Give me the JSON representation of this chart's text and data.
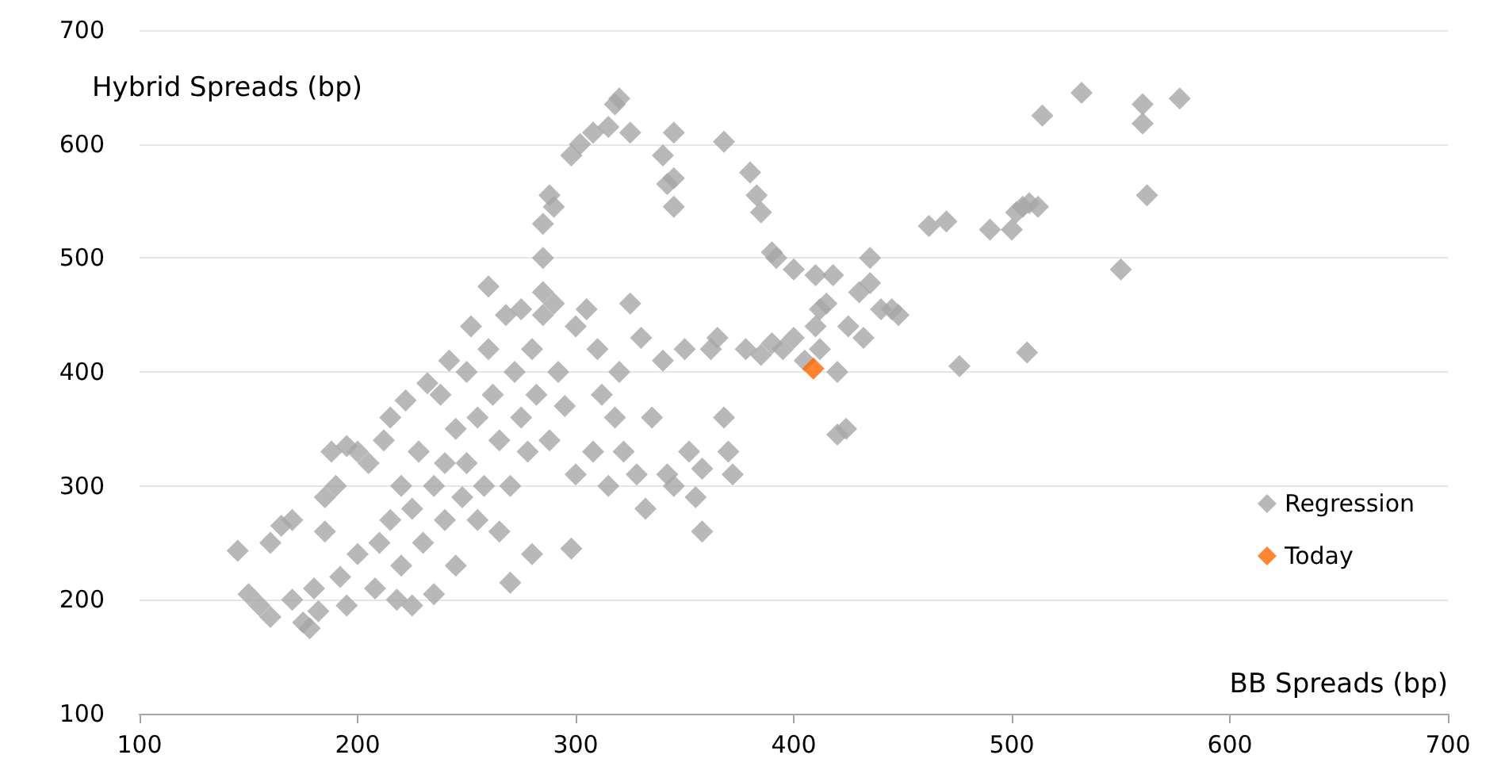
{
  "chart_data": {
    "type": "scatter",
    "xlabel": "BB Spreads (bp)",
    "ylabel": "Hybrid Spreads (bp)",
    "xlim": [
      100,
      700
    ],
    "xticks": [
      100,
      200,
      300,
      400,
      500,
      600,
      700
    ],
    "ylim": [
      100,
      700
    ],
    "yticks": [
      100,
      200,
      300,
      400,
      500,
      600,
      700
    ],
    "grid": "y",
    "legend": "right",
    "marker": "diamond",
    "series": [
      {
        "name": "Regression",
        "color": "#a6a6a6",
        "x": [
          145,
          150,
          155,
          160,
          160,
          165,
          170,
          170,
          175,
          178,
          180,
          182,
          185,
          185,
          188,
          190,
          192,
          195,
          195,
          200,
          200,
          205,
          208,
          210,
          212,
          215,
          215,
          218,
          220,
          220,
          222,
          225,
          225,
          228,
          230,
          232,
          235,
          235,
          238,
          240,
          240,
          242,
          245,
          245,
          248,
          250,
          250,
          252,
          255,
          255,
          258,
          260,
          260,
          262,
          265,
          265,
          268,
          270,
          270,
          272,
          275,
          275,
          278,
          280,
          280,
          282,
          285,
          285,
          285,
          288,
          290,
          292,
          295,
          298,
          300,
          300,
          305,
          308,
          310,
          312,
          315,
          318,
          320,
          322,
          325,
          328,
          330,
          332,
          335,
          340,
          342,
          345,
          350,
          352,
          355,
          358,
          358,
          362,
          365,
          368,
          370,
          372,
          378,
          385,
          390,
          395,
          400,
          405,
          410,
          412,
          415,
          418,
          420,
          420,
          424,
          425,
          430,
          432,
          435,
          435,
          440,
          445,
          448,
          288,
          285,
          290,
          298,
          302,
          308,
          315,
          318,
          320,
          325,
          340,
          342,
          345,
          345,
          345,
          368,
          380,
          383,
          385,
          390,
          392,
          400,
          410,
          412,
          462,
          470,
          476,
          490,
          500,
          502,
          505,
          508,
          512,
          507,
          514,
          532,
          550,
          560,
          560,
          562,
          577
        ],
        "values": [
          243,
          205,
          195,
          250,
          185,
          265,
          200,
          270,
          180,
          175,
          210,
          190,
          260,
          290,
          330,
          300,
          220,
          335,
          195,
          330,
          240,
          320,
          210,
          250,
          340,
          360,
          270,
          200,
          230,
          300,
          375,
          280,
          195,
          330,
          250,
          390,
          300,
          205,
          380,
          320,
          270,
          410,
          350,
          230,
          290,
          400,
          320,
          440,
          360,
          270,
          300,
          475,
          420,
          380,
          340,
          260,
          450,
          300,
          215,
          400,
          455,
          360,
          330,
          420,
          240,
          380,
          470,
          500,
          450,
          340,
          460,
          400,
          370,
          245,
          440,
          310,
          455,
          330,
          420,
          380,
          300,
          360,
          400,
          330,
          460,
          310,
          430,
          280,
          360,
          410,
          310,
          300,
          420,
          330,
          290,
          260,
          315,
          420,
          430,
          360,
          330,
          310,
          420,
          415,
          425,
          420,
          430,
          410,
          440,
          420,
          460,
          485,
          400,
          345,
          350,
          440,
          470,
          430,
          500,
          478,
          455,
          455,
          450,
          555,
          530,
          545,
          590,
          600,
          610,
          615,
          635,
          640,
          610,
          590,
          565,
          570,
          545,
          610,
          602,
          575,
          555,
          540,
          505,
          500,
          490,
          485,
          455,
          528,
          532,
          405,
          525,
          525,
          540,
          545,
          548,
          545,
          417,
          625,
          645,
          490,
          635,
          618,
          555,
          640
        ]
      },
      {
        "name": "Today",
        "color": "#ff6600",
        "x": [
          409
        ],
        "values": [
          403
        ]
      }
    ]
  }
}
